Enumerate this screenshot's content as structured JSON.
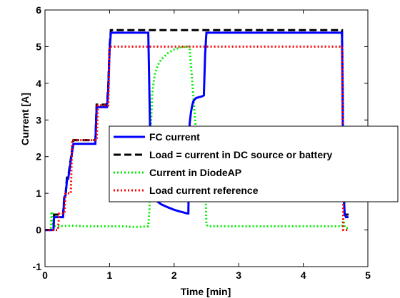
{
  "chart_data": {
    "type": "line",
    "title": "",
    "xlabel": "Time [min]",
    "ylabel": "Current [A]",
    "xlim": [
      0,
      5
    ],
    "ylim": [
      -1,
      6
    ],
    "xticks": [
      0,
      1,
      2,
      3,
      4,
      5
    ],
    "yticks": [
      -1,
      0,
      1,
      2,
      3,
      4,
      5,
      6
    ],
    "grid": false,
    "legend_position": "center-right",
    "series": [
      {
        "name": "FC current",
        "color": "#0000ff",
        "style": "solid",
        "x": [
          0,
          0.13,
          0.14,
          0.28,
          0.3,
          0.32,
          0.34,
          0.36,
          0.4,
          0.44,
          0.5,
          0.6,
          0.7,
          0.78,
          0.8,
          0.82,
          0.9,
          0.96,
          0.98,
          1.0,
          1.02,
          1.6,
          1.62,
          1.64,
          1.68,
          1.72,
          1.8,
          1.9,
          2.0,
          2.1,
          2.2,
          2.22,
          2.24,
          2.26,
          2.28,
          2.3,
          2.34,
          2.38,
          2.4,
          2.44,
          2.46,
          2.48,
          2.5,
          2.52,
          4.6,
          4.61,
          4.62,
          4.64,
          4.66,
          4.7
        ],
        "y": [
          0.0,
          0.0,
          0.35,
          0.35,
          0.9,
          0.95,
          1.35,
          1.4,
          1.9,
          2.35,
          2.35,
          2.35,
          2.35,
          2.35,
          3.35,
          3.35,
          3.35,
          3.35,
          3.85,
          4.9,
          5.38,
          5.38,
          3.5,
          1.5,
          0.95,
          0.8,
          0.7,
          0.62,
          0.55,
          0.5,
          0.45,
          0.45,
          2.9,
          3.2,
          3.4,
          3.52,
          3.6,
          3.62,
          3.63,
          3.65,
          3.67,
          4.8,
          5.38,
          5.38,
          5.38,
          3.8,
          1.2,
          0.45,
          0.35,
          0.35
        ]
      },
      {
        "name": "Load = current in DC source or battery",
        "color": "#000000",
        "style": "dashed",
        "x": [
          0,
          0.13,
          0.14,
          0.28,
          0.3,
          0.32,
          0.34,
          0.36,
          0.4,
          0.44,
          0.5,
          0.6,
          0.7,
          0.78,
          0.8,
          0.82,
          0.9,
          0.96,
          0.98,
          1.0,
          1.02,
          2.0,
          3.0,
          4.0,
          4.6,
          4.61,
          4.62,
          4.64,
          4.66,
          4.7
        ],
        "y": [
          0.0,
          0.0,
          0.42,
          0.42,
          0.95,
          1.0,
          1.42,
          1.47,
          1.95,
          2.45,
          2.45,
          2.45,
          2.45,
          2.45,
          3.42,
          3.42,
          3.42,
          3.42,
          3.95,
          5.0,
          5.45,
          5.45,
          5.45,
          5.45,
          5.45,
          3.8,
          1.3,
          0.42,
          0.42,
          0.42
        ]
      },
      {
        "name": "Current in DiodeAP",
        "color": "#00ee00",
        "style": "dotted",
        "x": [
          0,
          0.09,
          0.1,
          0.11,
          0.12,
          0.14,
          0.2,
          0.4,
          0.6,
          0.8,
          1.0,
          1.2,
          1.4,
          1.6,
          1.62,
          1.64,
          1.66,
          1.68,
          1.7,
          1.75,
          1.8,
          1.9,
          2.0,
          2.1,
          2.2,
          2.22,
          2.24,
          2.3,
          2.36,
          2.4,
          2.44,
          2.48,
          2.5,
          2.52,
          2.6,
          3.0,
          3.5,
          4.0,
          4.5,
          4.6,
          4.62,
          4.64,
          4.66,
          4.7
        ],
        "y": [
          0.0,
          0.0,
          0.45,
          0.5,
          0.2,
          0.1,
          0.1,
          0.12,
          0.1,
          0.1,
          0.1,
          0.1,
          0.08,
          0.1,
          0.6,
          2.8,
          3.7,
          4.0,
          4.25,
          4.5,
          4.65,
          4.82,
          4.92,
          4.98,
          5.0,
          5.0,
          4.95,
          3.6,
          2.2,
          1.6,
          1.4,
          1.3,
          0.15,
          0.1,
          0.1,
          0.1,
          0.1,
          0.1,
          0.1,
          0.1,
          0.3,
          0.1,
          0.05,
          0.05
        ]
      },
      {
        "name": "Load current reference",
        "color": "#ff0000",
        "style": "dotted",
        "x": [
          0,
          0.1,
          0.2,
          0.22,
          0.3,
          0.32,
          0.4,
          0.42,
          0.6,
          0.8,
          0.82,
          0.98,
          1.0,
          2.0,
          3.0,
          4.0,
          4.6,
          4.62,
          4.7
        ],
        "y": [
          0.0,
          0.0,
          0.0,
          0.45,
          0.45,
          1.0,
          1.0,
          2.45,
          2.45,
          2.45,
          3.4,
          3.4,
          5.0,
          5.0,
          5.0,
          5.0,
          5.0,
          0.0,
          0.0
        ]
      }
    ]
  }
}
